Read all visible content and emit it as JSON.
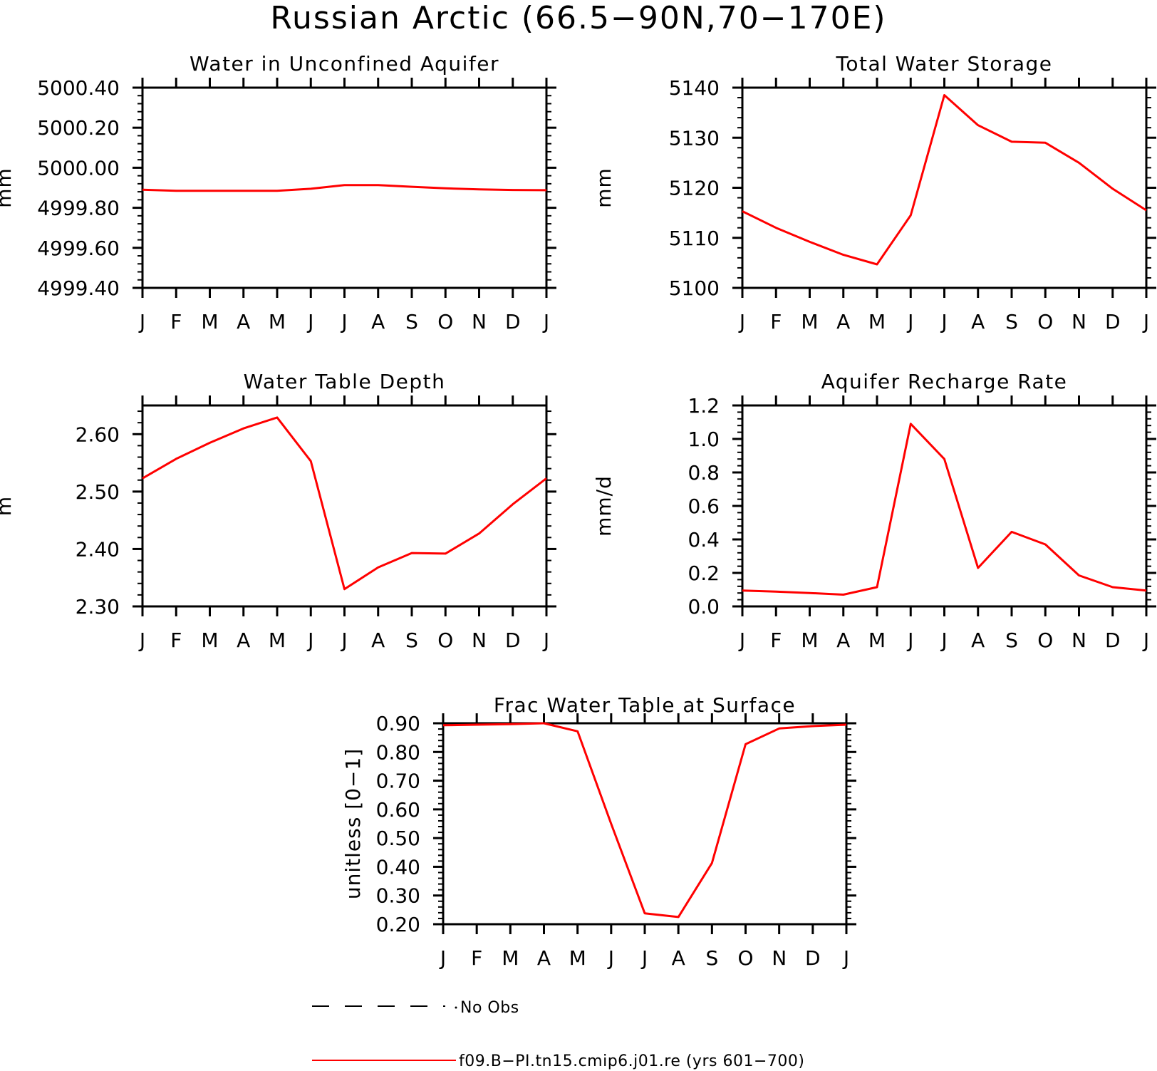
{
  "title": "Russian Arctic (66.5−90N,70−170E)",
  "colors": {
    "model": "#ff0000",
    "obs": "#000000",
    "axes": "#000000"
  },
  "legend": [
    {
      "label": "No Obs",
      "style": "dashed",
      "color": "#000000"
    },
    {
      "label": "f09.B−PI.tn15.cmip6.j01.re (yrs 601−700)",
      "style": "solid",
      "color": "#ff0000"
    }
  ],
  "chart_data": [
    {
      "type": "line",
      "title": "Water in Unconfined Aquifer",
      "ylabel": "mm",
      "categories": [
        "J",
        "F",
        "M",
        "A",
        "M",
        "J",
        "J",
        "A",
        "S",
        "O",
        "N",
        "D",
        "J"
      ],
      "ylim": [
        4999.4,
        5000.4
      ],
      "yticks": [
        4999.4,
        4999.6,
        4999.8,
        5000.0,
        5000.2,
        5000.4
      ],
      "ytick_labels": [
        "4999.40",
        "4999.60",
        "4999.80",
        "5000.00",
        "5000.20",
        "5000.40"
      ],
      "series": [
        {
          "values": [
            4999.89,
            4999.885,
            4999.885,
            4999.885,
            4999.885,
            4999.895,
            4999.913,
            4999.913,
            4999.905,
            4999.897,
            4999.892,
            4999.889,
            4999.888
          ]
        }
      ]
    },
    {
      "type": "line",
      "title": "Total Water Storage",
      "ylabel": "mm",
      "categories": [
        "J",
        "F",
        "M",
        "A",
        "M",
        "J",
        "J",
        "A",
        "S",
        "O",
        "N",
        "D",
        "J"
      ],
      "ylim": [
        5100,
        5140
      ],
      "yticks": [
        5100,
        5110,
        5120,
        5130,
        5140
      ],
      "ytick_labels": [
        "5100",
        "5110",
        "5120",
        "5130",
        "5140"
      ],
      "series": [
        {
          "values": [
            5115.3,
            5112.0,
            5109.2,
            5106.6,
            5104.7,
            5114.5,
            5138.5,
            5132.5,
            5129.2,
            5129.0,
            5125.0,
            5119.8,
            5115.5
          ]
        }
      ]
    },
    {
      "type": "line",
      "title": "Water Table Depth",
      "ylabel": "m",
      "categories": [
        "J",
        "F",
        "M",
        "A",
        "M",
        "J",
        "J",
        "A",
        "S",
        "O",
        "N",
        "D",
        "J"
      ],
      "ylim": [
        2.3,
        2.65
      ],
      "yticks": [
        2.3,
        2.4,
        2.5,
        2.6
      ],
      "ytick_labels": [
        "2.30",
        "2.40",
        "2.50",
        "2.60"
      ],
      "series": [
        {
          "values": [
            2.523,
            2.557,
            2.585,
            2.61,
            2.629,
            2.553,
            2.33,
            2.368,
            2.393,
            2.392,
            2.427,
            2.478,
            2.523
          ]
        }
      ]
    },
    {
      "type": "line",
      "title": "Aquifer Recharge Rate",
      "ylabel": "mm/d",
      "categories": [
        "J",
        "F",
        "M",
        "A",
        "M",
        "J",
        "J",
        "A",
        "S",
        "O",
        "N",
        "D",
        "J"
      ],
      "ylim": [
        0.0,
        1.2
      ],
      "yticks": [
        0.0,
        0.2,
        0.4,
        0.6,
        0.8,
        1.0,
        1.2
      ],
      "ytick_labels": [
        "0.0",
        "0.2",
        "0.4",
        "0.6",
        "0.8",
        "1.0",
        "1.2"
      ],
      "series": [
        {
          "values": [
            0.095,
            0.088,
            0.08,
            0.07,
            0.115,
            1.09,
            0.88,
            0.23,
            0.445,
            0.37,
            0.185,
            0.115,
            0.095
          ]
        }
      ]
    },
    {
      "type": "line",
      "title": "Frac Water Table at Surface",
      "ylabel": "unitless [0−1]",
      "categories": [
        "J",
        "F",
        "M",
        "A",
        "M",
        "J",
        "J",
        "A",
        "S",
        "O",
        "N",
        "D",
        "J"
      ],
      "ylim": [
        0.2,
        0.9
      ],
      "yticks": [
        0.2,
        0.3,
        0.4,
        0.5,
        0.6,
        0.7,
        0.8,
        0.9
      ],
      "ytick_labels": [
        "0.20",
        "0.30",
        "0.40",
        "0.50",
        "0.60",
        "0.70",
        "0.80",
        "0.90"
      ],
      "series": [
        {
          "values": [
            0.893,
            0.895,
            0.897,
            0.9,
            0.872,
            0.55,
            0.238,
            0.225,
            0.413,
            0.827,
            0.882,
            0.89,
            0.895
          ]
        }
      ]
    }
  ]
}
